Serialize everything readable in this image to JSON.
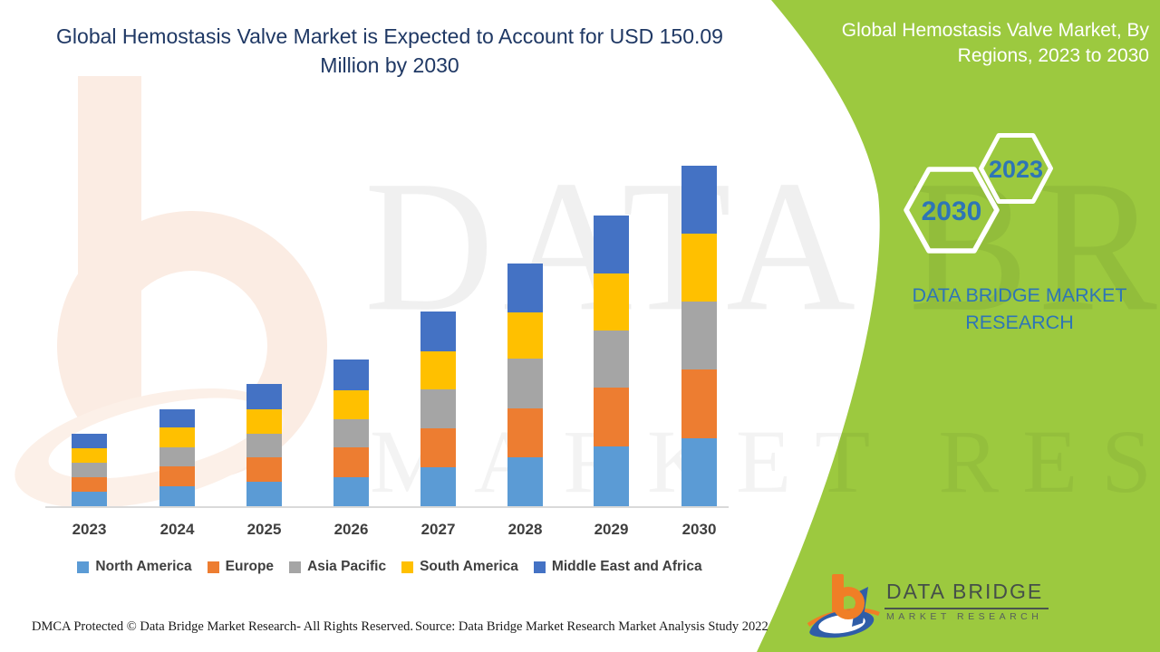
{
  "title": "Global Hemostasis Valve Market is Expected to Account for USD 150.09 Million by 2030",
  "side_panel": {
    "heading": "Global Hemostasis Valve Market, By Regions, 2023 to 2030",
    "hexagon_labels": [
      "2023",
      "2030"
    ],
    "brand_text": "DATA BRIDGE MARKET RESEARCH",
    "bg_color": "#9CC93F",
    "heading_color": "#FFFFFF",
    "accent_text_color": "#2E75B6"
  },
  "chart_data": {
    "type": "bar",
    "stacked": true,
    "unit": "USD Million",
    "title": "Global Hemostasis Valve Market, By Regions, 2023 to 2030",
    "categories": [
      "2023",
      "2024",
      "2025",
      "2026",
      "2027",
      "2028",
      "2029",
      "2030"
    ],
    "series": [
      {
        "name": "North America",
        "color": "#5B9BD5",
        "values": [
          6.8,
          9.2,
          11.1,
          13.1,
          17.5,
          21.9,
          26.7,
          30.2
        ]
      },
      {
        "name": "Europe",
        "color": "#ED7D31",
        "values": [
          6.4,
          8.8,
          10.7,
          13.1,
          17.1,
          21.5,
          25.9,
          30.2
        ]
      },
      {
        "name": "Asia Pacific",
        "color": "#A5A5A5",
        "values": [
          6.4,
          8.4,
          10.3,
          12.3,
          17.1,
          21.9,
          25.1,
          29.9
        ]
      },
      {
        "name": "South America",
        "color": "#FFC000",
        "values": [
          6.4,
          8.8,
          10.7,
          12.7,
          16.7,
          20.3,
          25.1,
          29.9
        ]
      },
      {
        "name": "Middle East and Africa",
        "color": "#4472C4",
        "values": [
          6.4,
          8.0,
          11.1,
          13.5,
          17.5,
          21.5,
          25.5,
          29.9
        ]
      }
    ],
    "totals_estimated": [
      32.4,
      43.2,
      53.9,
      64.7,
      85.9,
      107.1,
      128.3,
      150.1
    ],
    "stated_2030_total": 150.09,
    "value_axis_visible": false,
    "gridlines": false,
    "legend_position": "bottom"
  },
  "watermark": {
    "line1": "DATA BRIDGE",
    "line2": "MARKET RESEARCH"
  },
  "logo": {
    "name": "DATA BRIDGE",
    "tagline": "MARKET RESEARCH"
  },
  "footer": {
    "dmca": "DMCA Protected © Data Bridge Market Research- All Rights Reserved.",
    "source": "Source: Data Bridge Market Research Market Analysis Study 2022"
  }
}
